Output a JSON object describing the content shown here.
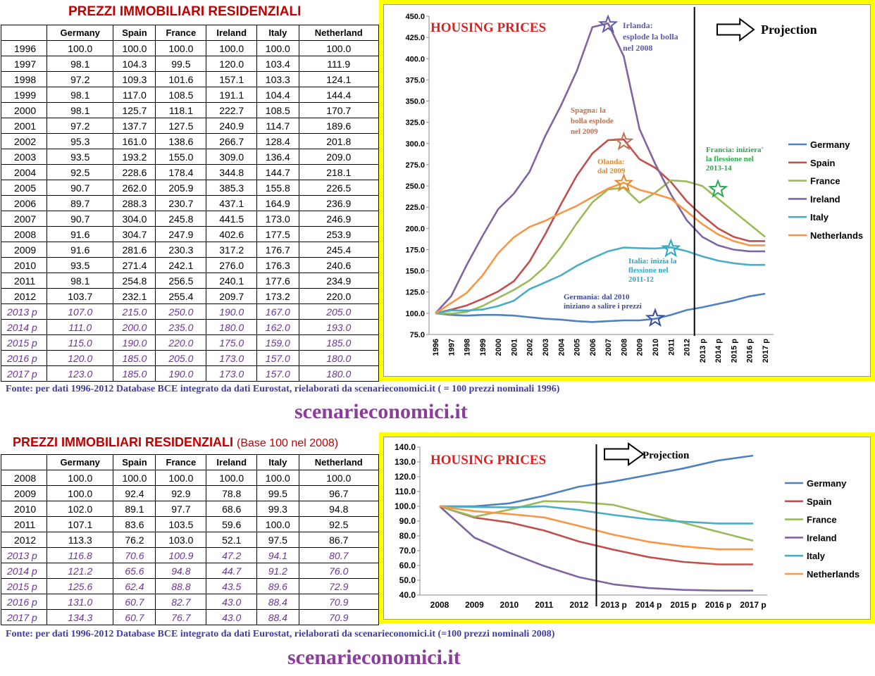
{
  "table1": {
    "title": "PREZZI IMMOBILIARI RESIDENZIALI",
    "columns": [
      "Germany",
      "Spain",
      "France",
      "Ireland",
      "Italy",
      "Netherland"
    ],
    "rows": [
      {
        "year": "1996",
        "values": [
          "100.0",
          "100.0",
          "100.0",
          "100.0",
          "100.0",
          "100.0"
        ]
      },
      {
        "year": "1997",
        "values": [
          "98.1",
          "104.3",
          "99.5",
          "120.0",
          "103.4",
          "111.9"
        ]
      },
      {
        "year": "1998",
        "values": [
          "97.2",
          "109.3",
          "101.6",
          "157.1",
          "103.3",
          "124.1"
        ]
      },
      {
        "year": "1999",
        "values": [
          "98.1",
          "117.0",
          "108.5",
          "191.1",
          "104.4",
          "144.4"
        ]
      },
      {
        "year": "2000",
        "values": [
          "98.1",
          "125.7",
          "118.1",
          "222.7",
          "108.5",
          "170.7"
        ]
      },
      {
        "year": "2001",
        "values": [
          "97.2",
          "137.7",
          "127.5",
          "240.9",
          "114.7",
          "189.6"
        ]
      },
      {
        "year": "2002",
        "values": [
          "95.3",
          "161.0",
          "138.6",
          "266.7",
          "128.4",
          "201.8"
        ]
      },
      {
        "year": "2003",
        "values": [
          "93.5",
          "193.2",
          "155.0",
          "309.0",
          "136.4",
          "209.0"
        ]
      },
      {
        "year": "2004",
        "values": [
          "92.5",
          "228.6",
          "178.4",
          "344.8",
          "144.7",
          "218.1"
        ]
      },
      {
        "year": "2005",
        "values": [
          "90.7",
          "262.0",
          "205.9",
          "385.3",
          "155.8",
          "226.5"
        ]
      },
      {
        "year": "2006",
        "values": [
          "89.7",
          "288.3",
          "230.7",
          "437.1",
          "164.9",
          "236.9"
        ]
      },
      {
        "year": "2007",
        "values": [
          "90.7",
          "304.0",
          "245.8",
          "441.5",
          "173.0",
          "246.9"
        ]
      },
      {
        "year": "2008",
        "values": [
          "91.6",
          "304.7",
          "247.9",
          "402.6",
          "177.5",
          "253.9"
        ]
      },
      {
        "year": "2009",
        "values": [
          "91.6",
          "281.6",
          "230.3",
          "317.2",
          "176.7",
          "245.4"
        ]
      },
      {
        "year": "2010",
        "values": [
          "93.5",
          "271.4",
          "242.1",
          "276.0",
          "176.3",
          "240.6"
        ]
      },
      {
        "year": "2011",
        "values": [
          "98.1",
          "254.8",
          "256.5",
          "240.1",
          "177.6",
          "234.9"
        ]
      },
      {
        "year": "2012",
        "values": [
          "103.7",
          "232.1",
          "255.4",
          "209.7",
          "173.2",
          "220.0"
        ]
      },
      {
        "year": "2013 p",
        "values": [
          "107.0",
          "215.0",
          "250.0",
          "190.0",
          "167.0",
          "205.0"
        ],
        "proj": true
      },
      {
        "year": "2014 p",
        "values": [
          "111.0",
          "200.0",
          "235.0",
          "180.0",
          "162.0",
          "193.0"
        ],
        "proj": true
      },
      {
        "year": "2015 p",
        "values": [
          "115.0",
          "190.0",
          "220.0",
          "175.0",
          "159.0",
          "185.0"
        ],
        "proj": true
      },
      {
        "year": "2016 p",
        "values": [
          "120.0",
          "185.0",
          "205.0",
          "173.0",
          "157.0",
          "180.0"
        ],
        "proj": true
      },
      {
        "year": "2017 p",
        "values": [
          "123.0",
          "185.0",
          "190.0",
          "173.0",
          "157.0",
          "180.0"
        ],
        "proj": true
      }
    ]
  },
  "table2": {
    "title": "PREZZI IMMOBILIARI RESIDENZIALI",
    "subtitle": "(Base 100 nel 2008)",
    "columns": [
      "Germany",
      "Spain",
      "France",
      "Ireland",
      "Italy",
      "Netherland"
    ],
    "rows": [
      {
        "year": "2008",
        "values": [
          "100.0",
          "100.0",
          "100.0",
          "100.0",
          "100.0",
          "100.0"
        ]
      },
      {
        "year": "2009",
        "values": [
          "100.0",
          "92.4",
          "92.9",
          "78.8",
          "99.5",
          "96.7"
        ]
      },
      {
        "year": "2010",
        "values": [
          "102.0",
          "89.1",
          "97.7",
          "68.6",
          "99.3",
          "94.8"
        ]
      },
      {
        "year": "2011",
        "values": [
          "107.1",
          "83.6",
          "103.5",
          "59.6",
          "100.0",
          "92.5"
        ]
      },
      {
        "year": "2012",
        "values": [
          "113.3",
          "76.2",
          "103.0",
          "52.1",
          "97.5",
          "86.7"
        ]
      },
      {
        "year": "2013 p",
        "values": [
          "116.8",
          "70.6",
          "100.9",
          "47.2",
          "94.1",
          "80.7"
        ],
        "proj": true
      },
      {
        "year": "2014 p",
        "values": [
          "121.2",
          "65.6",
          "94.8",
          "44.7",
          "91.2",
          "76.0"
        ],
        "proj": true
      },
      {
        "year": "2015 p",
        "values": [
          "125.6",
          "62.4",
          "88.8",
          "43.5",
          "89.6",
          "72.9"
        ],
        "proj": true
      },
      {
        "year": "2016 p",
        "values": [
          "131.0",
          "60.7",
          "82.7",
          "43.0",
          "88.4",
          "70.9"
        ],
        "proj": true
      },
      {
        "year": "2017 p",
        "values": [
          "134.3",
          "60.7",
          "76.7",
          "43.0",
          "88.4",
          "70.9"
        ],
        "proj": true
      }
    ]
  },
  "sources": {
    "fonte1": "Fonte: per dati 1996-2012 Database BCE integrato da dati Eurostat, rielaborati da scenarieconomici.it ( = 100 prezzi nominali 1996)",
    "fonte2": "Fonte: per dati 1996-2012 Database BCE integrato da dati Eurostat, rielaborati da scenarieconomici.it  (=100 prezzi nominali 2008)",
    "site": "scenarieconomici.it"
  },
  "colors": {
    "Germany": "#4f81bd",
    "Spain": "#c0504d",
    "France": "#9bbb59",
    "Ireland": "#8064a2",
    "Italy": "#4bacc6",
    "Netherlands": "#f79646",
    "chart_title": "#e02020",
    "frame": "#ffff00"
  },
  "chart_data": [
    {
      "type": "line",
      "title": "HOUSING PRICES",
      "projection_label": "Projection",
      "x": [
        "1996",
        "1997",
        "1998",
        "1999",
        "2000",
        "2001",
        "2002",
        "2003",
        "2004",
        "2005",
        "2006",
        "2007",
        "2008",
        "2009",
        "2010",
        "2011",
        "2012",
        "2013 p",
        "2014 p",
        "2015 p",
        "2016 p",
        "2017 p"
      ],
      "ylim": [
        75,
        450
      ],
      "yticks": [
        "75.0",
        "100.0",
        "125.0",
        "150.0",
        "175.0",
        "200.0",
        "225.0",
        "250.0",
        "275.0",
        "300.0",
        "325.0",
        "350.0",
        "375.0",
        "400.0",
        "425.0",
        "450.0"
      ],
      "grid": false,
      "legend_position": "right",
      "series": [
        {
          "name": "Germany",
          "values": [
            100.0,
            98.1,
            97.2,
            98.1,
            98.1,
            97.2,
            95.3,
            93.5,
            92.5,
            90.7,
            89.7,
            90.7,
            91.6,
            91.6,
            93.5,
            98.1,
            103.7,
            107.0,
            111.0,
            115.0,
            120.0,
            123.0
          ]
        },
        {
          "name": "Spain",
          "values": [
            100.0,
            104.3,
            109.3,
            117.0,
            125.7,
            137.7,
            161.0,
            193.2,
            228.6,
            262.0,
            288.3,
            304.0,
            304.7,
            281.6,
            271.4,
            254.8,
            232.1,
            215.0,
            200.0,
            190.0,
            185.0,
            185.0
          ]
        },
        {
          "name": "France",
          "values": [
            100.0,
            99.5,
            101.6,
            108.5,
            118.1,
            127.5,
            138.6,
            155.0,
            178.4,
            205.9,
            230.7,
            245.8,
            247.9,
            230.3,
            242.1,
            256.5,
            255.4,
            250.0,
            235.0,
            220.0,
            205.0,
            190.0
          ]
        },
        {
          "name": "Ireland",
          "values": [
            100.0,
            120.0,
            157.1,
            191.1,
            222.7,
            240.9,
            266.7,
            309.0,
            344.8,
            385.3,
            437.1,
            441.5,
            402.6,
            317.2,
            276.0,
            240.1,
            209.7,
            190.0,
            180.0,
            175.0,
            173.0,
            173.0
          ]
        },
        {
          "name": "Italy",
          "values": [
            100.0,
            103.4,
            103.3,
            104.4,
            108.5,
            114.7,
            128.4,
            136.4,
            144.7,
            155.8,
            164.9,
            173.0,
            177.5,
            176.7,
            176.3,
            177.6,
            173.2,
            167.0,
            162.0,
            159.0,
            157.0,
            157.0
          ]
        },
        {
          "name": "Netherlands",
          "values": [
            100.0,
            111.9,
            124.1,
            144.4,
            170.7,
            189.6,
            201.8,
            209.0,
            218.1,
            226.5,
            236.9,
            246.9,
            253.9,
            245.4,
            240.6,
            234.9,
            220.0,
            205.0,
            193.0,
            185.0,
            180.0,
            180.0
          ]
        }
      ],
      "annotations": [
        {
          "lines": [
            "Irlanda:",
            "esplode la bolla",
            "nel 2008"
          ],
          "color": "#5b5bb0",
          "star": {
            "x": "2007",
            "y": 440
          }
        },
        {
          "lines": [
            "Spagna: la",
            "bolla esplode",
            "nel 2009"
          ],
          "color": "#c07050",
          "star": {
            "x": "2008",
            "y": 302
          }
        },
        {
          "lines": [
            "Olanda:",
            "dal 2009"
          ],
          "color": "#e08a30",
          "star": {
            "x": "2008",
            "y": 253
          }
        },
        {
          "lines": [
            "Francia: iniziera'",
            "la flessione nel",
            "2013-14"
          ],
          "color": "#2aaa4a",
          "star": {
            "x": "2014 p",
            "y": 246
          }
        },
        {
          "lines": [
            "Italia: inizia la",
            "flessione nel",
            "2011-12"
          ],
          "color": "#2aa9c6",
          "star": {
            "x": "2011",
            "y": 176
          }
        },
        {
          "lines": [
            "Germania: dal 2010",
            "iniziano a salire i prezzi"
          ],
          "color": "#3c4c9c",
          "star": {
            "x": "2010",
            "y": 94
          }
        }
      ]
    },
    {
      "type": "line",
      "title": "HOUSING PRICES",
      "projection_label": "Projection",
      "x": [
        "2008",
        "2009",
        "2010",
        "2011",
        "2012",
        "2013 p",
        "2014 p",
        "2015 p",
        "2016 p",
        "2017 p"
      ],
      "ylim": [
        40,
        140
      ],
      "yticks": [
        "40.0",
        "50.0",
        "60.0",
        "70.0",
        "80.0",
        "90.0",
        "100.0",
        "110.0",
        "120.0",
        "130.0",
        "140.0"
      ],
      "grid": false,
      "legend_position": "right",
      "series": [
        {
          "name": "Germany",
          "values": [
            100.0,
            100.0,
            102.0,
            107.1,
            113.3,
            116.8,
            121.2,
            125.6,
            131.0,
            134.3
          ]
        },
        {
          "name": "Spain",
          "values": [
            100.0,
            92.4,
            89.1,
            83.6,
            76.2,
            70.6,
            65.6,
            62.4,
            60.7,
            60.7
          ]
        },
        {
          "name": "France",
          "values": [
            100.0,
            92.9,
            97.7,
            103.5,
            103.0,
            100.9,
            94.8,
            88.8,
            82.7,
            76.7
          ]
        },
        {
          "name": "Ireland",
          "values": [
            100.0,
            78.8,
            68.6,
            59.6,
            52.1,
            47.2,
            44.7,
            43.5,
            43.0,
            43.0
          ]
        },
        {
          "name": "Italy",
          "values": [
            100.0,
            99.5,
            99.3,
            100.0,
            97.5,
            94.1,
            91.2,
            89.6,
            88.4,
            88.4
          ]
        },
        {
          "name": "Netherlands",
          "values": [
            100.0,
            96.7,
            94.8,
            92.5,
            86.7,
            80.7,
            76.0,
            72.9,
            70.9,
            70.9
          ]
        }
      ]
    }
  ]
}
